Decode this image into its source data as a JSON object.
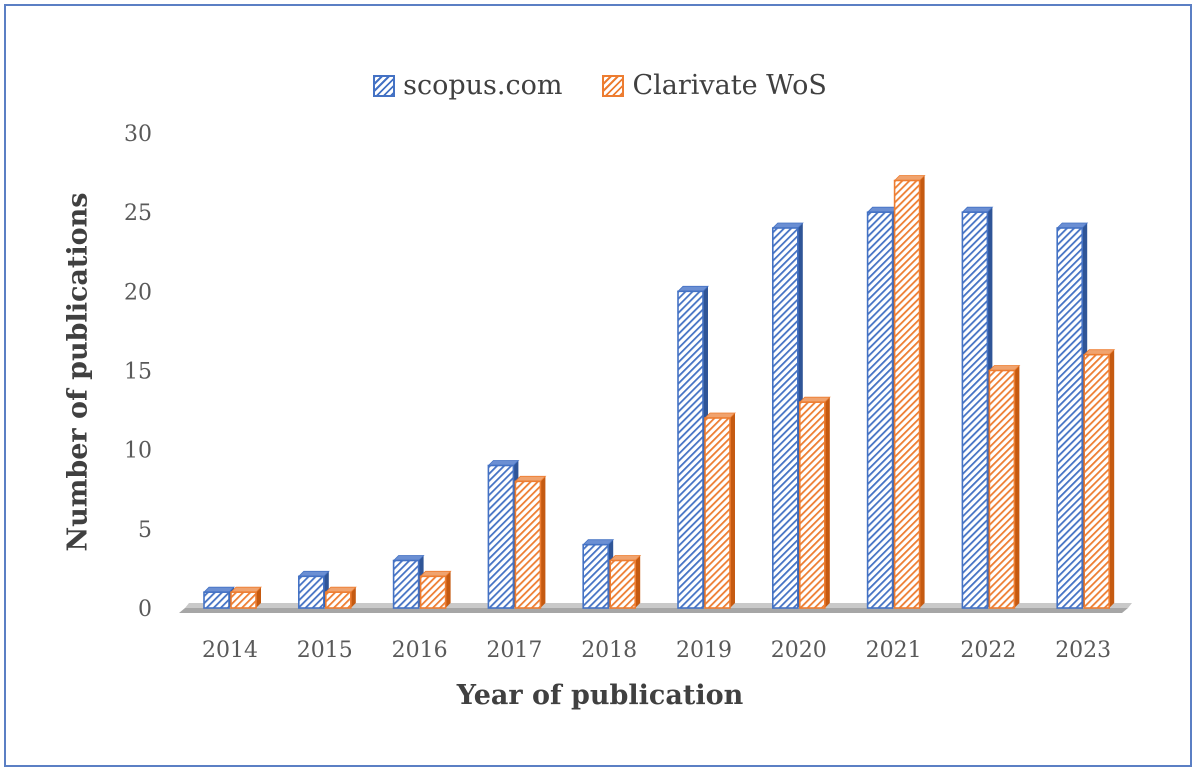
{
  "chart_data": {
    "type": "bar",
    "categories": [
      "2014",
      "2015",
      "2016",
      "2017",
      "2018",
      "2019",
      "2020",
      "2021",
      "2022",
      "2023"
    ],
    "series": [
      {
        "name": "scopus.com",
        "values": [
          1,
          2,
          3,
          9,
          4,
          20,
          24,
          25,
          25,
          24
        ],
        "color": "#4472c4"
      },
      {
        "name": "Clarivate WoS",
        "values": [
          1,
          1,
          2,
          8,
          3,
          12,
          13,
          27,
          15,
          16
        ],
        "color": "#ed7d31"
      }
    ],
    "xlabel": "Year of publication",
    "ylabel": "Number of publications",
    "ylim": [
      0,
      30
    ],
    "yticks": [
      "0",
      "5",
      "10",
      "15",
      "20",
      "25",
      "30"
    ],
    "legend_position": "top-center",
    "grid": false,
    "style": "3d-hatched"
  }
}
